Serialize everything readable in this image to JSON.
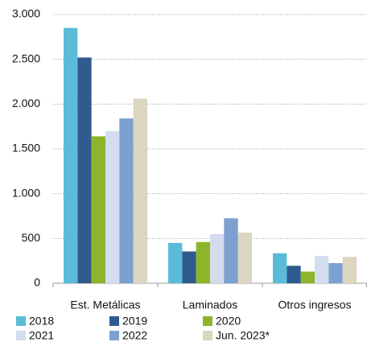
{
  "chart_data": {
    "type": "bar",
    "categories": [
      "Est. Metálicas",
      "Laminados",
      "Otros ingresos"
    ],
    "series": [
      {
        "name": "2018",
        "color": "#5bbcd9",
        "values": [
          2850,
          450,
          335
        ]
      },
      {
        "name": "2019",
        "color": "#2f5b8e",
        "values": [
          2520,
          355,
          195
        ]
      },
      {
        "name": "2020",
        "color": "#8db52b",
        "values": [
          1640,
          460,
          130
        ]
      },
      {
        "name": "2021",
        "color": "#d4ddee",
        "values": [
          1700,
          550,
          305
        ]
      },
      {
        "name": "2022",
        "color": "#7ca1d1",
        "values": [
          1840,
          725,
          225
        ]
      },
      {
        "name": "Jun. 2023*",
        "color": "#dcd5c0",
        "values": [
          2060,
          565,
          295
        ]
      }
    ],
    "ylim": [
      0,
      3000
    ],
    "yticks": [
      0,
      500,
      {
        "value": 1000,
        "label": "1.000"
      },
      {
        "value": 1500,
        "label": "1.500"
      },
      {
        "value": 2000,
        "label": "2.000"
      },
      {
        "value": 2500,
        "label": "2.500"
      },
      {
        "value": 3000,
        "label": "3.000"
      }
    ],
    "grid": true
  }
}
